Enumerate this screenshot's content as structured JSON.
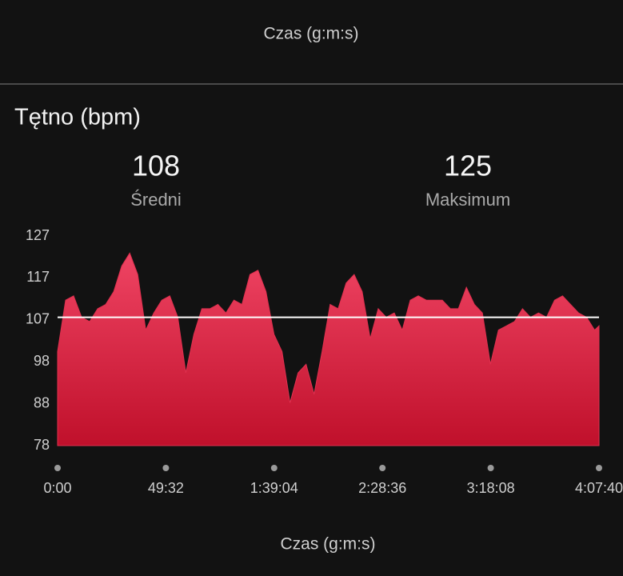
{
  "top_axis_label": "Czas (g:m:s)",
  "chart_data": {
    "type": "area",
    "title": "Tętno (bpm)",
    "x_label": "Czas (g:m:s)",
    "color": "#e0304f",
    "stats": [
      {
        "value": 108,
        "label": "Średni"
      },
      {
        "value": 125,
        "label": "Maksimum"
      }
    ],
    "x": [
      0,
      220,
      440,
      660,
      880,
      1100,
      1320,
      1540,
      1760,
      1980,
      2200,
      2420,
      2640,
      2860,
      3080,
      3300,
      3520,
      3740,
      3960,
      4180,
      4400,
      4620,
      4840,
      5060,
      5280,
      5500,
      5720,
      5940,
      6160,
      6380,
      6600,
      6820,
      7040,
      7260,
      7480,
      7700,
      7920,
      8140,
      8360,
      8580,
      8800,
      9020,
      9240,
      9460,
      9680,
      9900,
      10120,
      10340,
      10560,
      10780,
      11000,
      11220,
      11440,
      11660,
      11880,
      12100,
      12320,
      12540,
      12760,
      12980,
      13200,
      13420,
      13640,
      13860,
      14080,
      14300,
      14520,
      14740,
      14860
    ],
    "values": [
      100,
      112,
      113,
      108,
      107,
      110,
      111,
      114,
      120,
      123,
      118,
      105,
      109,
      112,
      113,
      108,
      95,
      104,
      110,
      110,
      111,
      109,
      112,
      111,
      118,
      119,
      114,
      104,
      100,
      88,
      95,
      97,
      90,
      100,
      111,
      110,
      116,
      118,
      114,
      103,
      110,
      108,
      109,
      105,
      112,
      113,
      112,
      112,
      112,
      110,
      110,
      115,
      111,
      109,
      97,
      105,
      106,
      107,
      110,
      108,
      109,
      108,
      112,
      113,
      111,
      109,
      108,
      105,
      106
    ],
    "xlim": [
      0,
      14860
    ],
    "xticks": [
      {
        "value": 0,
        "label": "0:00"
      },
      {
        "value": 2972,
        "label": "49:32"
      },
      {
        "value": 5944,
        "label": "1:39:04"
      },
      {
        "value": 8916,
        "label": "2:28:36"
      },
      {
        "value": 11888,
        "label": "3:18:08"
      },
      {
        "value": 14860,
        "label": "4:07:40"
      }
    ],
    "ylim": [
      78,
      127
    ],
    "yticks": [
      78,
      {
        "value": 87.8,
        "label": "88"
      },
      {
        "value": 97.6,
        "label": "98"
      },
      {
        "value": 107.4,
        "label": "107"
      },
      {
        "value": 117.2,
        "label": "117"
      },
      127
    ]
  }
}
